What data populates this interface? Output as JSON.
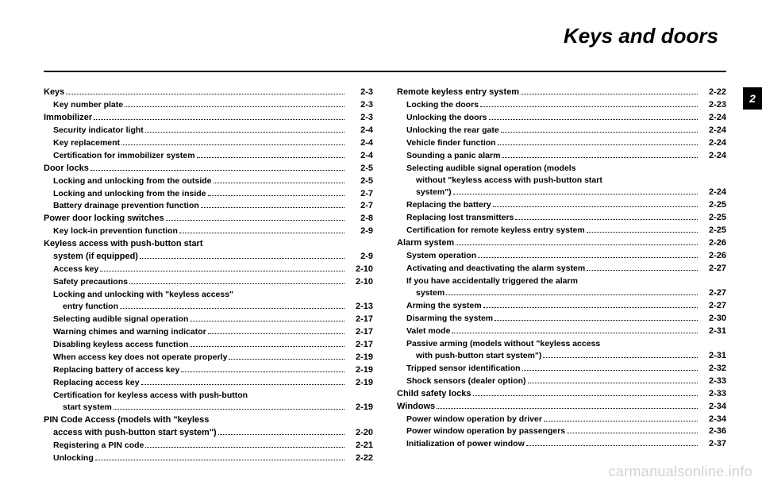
{
  "title": "Keys and doors",
  "chapter_tab": "2",
  "watermark": "carmanualsonline.info",
  "left_column": [
    {
      "level": "h1",
      "label": "Keys",
      "page": "2-3"
    },
    {
      "level": "h2",
      "label": "Key number plate",
      "page": "2-3"
    },
    {
      "level": "h1",
      "label": "Immobilizer",
      "page": "2-3"
    },
    {
      "level": "h2",
      "label": "Security indicator light",
      "page": "2-4"
    },
    {
      "level": "h2",
      "label": "Key replacement",
      "page": "2-4"
    },
    {
      "level": "h2",
      "label": "Certification for immobilizer system",
      "page": "2-4"
    },
    {
      "level": "h1",
      "label": "Door locks",
      "page": "2-5"
    },
    {
      "level": "h2",
      "label": "Locking and unlocking from the outside",
      "page": "2-5"
    },
    {
      "level": "h2",
      "label": "Locking and unlocking from the inside",
      "page": "2-7"
    },
    {
      "level": "h2",
      "label": "Battery drainage prevention function",
      "page": "2-7"
    },
    {
      "level": "h1",
      "label": "Power door locking switches",
      "page": "2-8"
    },
    {
      "level": "h2",
      "label": "Key lock-in prevention function",
      "page": "2-9"
    },
    {
      "level": "h1",
      "label": "Keyless access with push-button start",
      "cont": "system (if equipped)",
      "page": "2-9"
    },
    {
      "level": "h2",
      "label": "Access key",
      "page": "2-10"
    },
    {
      "level": "h2",
      "label": "Safety precautions",
      "page": "2-10"
    },
    {
      "level": "h2",
      "label": "Locking and unlocking with \"keyless access\"",
      "cont": "entry function",
      "page": "2-13"
    },
    {
      "level": "h2",
      "label": "Selecting audible signal operation",
      "page": "2-17"
    },
    {
      "level": "h2",
      "label": "Warning chimes and warning indicator",
      "page": "2-17"
    },
    {
      "level": "h2",
      "label": "Disabling keyless access function",
      "page": "2-17"
    },
    {
      "level": "h2",
      "label": "When access key does not operate properly",
      "page": "2-19"
    },
    {
      "level": "h2",
      "label": "Replacing battery of access key",
      "page": "2-19"
    },
    {
      "level": "h2",
      "label": "Replacing access key",
      "page": "2-19"
    },
    {
      "level": "h2",
      "label": "Certification for keyless access with push-button",
      "cont": "start system",
      "page": "2-19"
    },
    {
      "level": "h1",
      "label": "PIN Code Access (models with \"keyless",
      "cont": "access with push-button start system\")",
      "page": "2-20"
    },
    {
      "level": "h2",
      "label": "Registering a PIN code",
      "page": "2-21"
    },
    {
      "level": "h2",
      "label": "Unlocking",
      "page": "2-22"
    }
  ],
  "right_column": [
    {
      "level": "h1",
      "label": "Remote keyless entry system",
      "page": "2-22"
    },
    {
      "level": "h2",
      "label": "Locking the doors",
      "page": "2-23"
    },
    {
      "level": "h2",
      "label": "Unlocking the doors",
      "page": "2-24"
    },
    {
      "level": "h2",
      "label": "Unlocking the rear gate",
      "page": "2-24"
    },
    {
      "level": "h2",
      "label": "Vehicle finder function",
      "page": "2-24"
    },
    {
      "level": "h2",
      "label": "Sounding a panic alarm",
      "page": "2-24"
    },
    {
      "level": "h2",
      "label": "Selecting audible signal operation (models",
      "cont": "without \"keyless access with push-button start",
      "cont2": "system\")",
      "page": "2-24"
    },
    {
      "level": "h2",
      "label": "Replacing the battery",
      "page": "2-25"
    },
    {
      "level": "h2",
      "label": "Replacing lost transmitters",
      "page": "2-25"
    },
    {
      "level": "h2",
      "label": "Certification for remote keyless entry system",
      "page": "2-25"
    },
    {
      "level": "h1",
      "label": "Alarm system",
      "page": "2-26"
    },
    {
      "level": "h2",
      "label": "System operation",
      "page": "2-26"
    },
    {
      "level": "h2",
      "label": "Activating and deactivating the alarm system",
      "page": "2-27"
    },
    {
      "level": "h2",
      "label": "If you have accidentally triggered the alarm",
      "cont": "system",
      "page": "2-27"
    },
    {
      "level": "h2",
      "label": "Arming the system",
      "page": "2-27"
    },
    {
      "level": "h2",
      "label": "Disarming the system",
      "page": "2-30"
    },
    {
      "level": "h2",
      "label": "Valet mode",
      "page": "2-31"
    },
    {
      "level": "h2",
      "label": "Passive arming (models without \"keyless access",
      "cont": "with push-button start system\")",
      "page": "2-31"
    },
    {
      "level": "h2",
      "label": "Tripped sensor identification",
      "page": "2-32"
    },
    {
      "level": "h2",
      "label": "Shock sensors (dealer option)",
      "page": "2-33"
    },
    {
      "level": "h1",
      "label": "Child safety locks",
      "page": "2-33"
    },
    {
      "level": "h1",
      "label": "Windows",
      "page": "2-34"
    },
    {
      "level": "h2",
      "label": "Power window operation by driver",
      "page": "2-34"
    },
    {
      "level": "h2",
      "label": "Power window operation by passengers",
      "page": "2-36"
    },
    {
      "level": "h2",
      "label": "Initialization of power window",
      "page": "2-37"
    }
  ]
}
